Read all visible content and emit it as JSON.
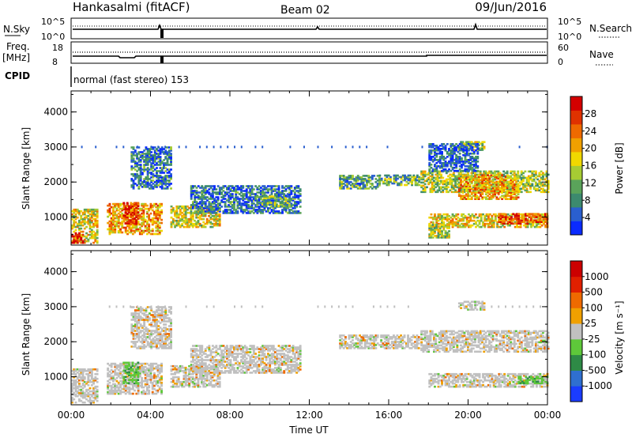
{
  "header": {
    "title": "Hankasalmi (fitACF)",
    "beam": "Beam 02",
    "date": "09/Jun/2016"
  },
  "top_panels": {
    "nsky_label": "N.Sky",
    "nsearch_label": "N.Search",
    "n_ticks": [
      "10^5",
      "10^0"
    ],
    "n_ticks_right": [
      "10^5",
      "10^0"
    ],
    "freq_label": "Freq.",
    "freq_unit": "[MHz]",
    "freq_ticks": [
      "18",
      "8"
    ],
    "nave_label": "Nave",
    "nave_ticks": [
      "60",
      "0"
    ],
    "cpid_label": "CPID",
    "cpid_text": "normal (fast stereo) 153"
  },
  "chart_data": [
    {
      "type": "heatmap",
      "title": "",
      "quantity": "Power",
      "ylabel": "Slant Range [km]",
      "xlabel": "",
      "ylim": [
        200,
        4600
      ],
      "yticks": [
        1000,
        2000,
        3000,
        4000
      ],
      "colorbar_label": "Power [dB]",
      "colorbar_ticks": [
        "4",
        "8",
        "12",
        "16",
        "20",
        "24",
        "28"
      ],
      "colorbar_colors": [
        "#0a2bff",
        "#2a5fcf",
        "#3c8a6e",
        "#5aa35a",
        "#a6cc33",
        "#f0d800",
        "#f0a000",
        "#ef6a00",
        "#e03200",
        "#d40000"
      ],
      "echo_regions": [
        {
          "t0": 0.0,
          "t1": 1.3,
          "r0": 250,
          "r1": 1200,
          "level": 0.55
        },
        {
          "t0": 0.0,
          "t1": 0.6,
          "r0": 250,
          "r1": 550,
          "level": 0.95
        },
        {
          "t0": 1.8,
          "t1": 4.5,
          "r0": 500,
          "r1": 1400,
          "level": 0.65
        },
        {
          "t0": 2.6,
          "t1": 3.4,
          "r0": 800,
          "r1": 1400,
          "level": 0.9
        },
        {
          "t0": 5.0,
          "t1": 7.5,
          "r0": 700,
          "r1": 1300,
          "level": 0.5
        },
        {
          "t0": 3.0,
          "t1": 5.0,
          "r0": 1800,
          "r1": 3000,
          "level": 0.2
        },
        {
          "t0": 6.0,
          "t1": 11.5,
          "r0": 1100,
          "r1": 1900,
          "level": 0.2
        },
        {
          "t0": 9.5,
          "t1": 11.0,
          "r0": 1300,
          "r1": 1600,
          "level": 0.35
        },
        {
          "t0": 13.5,
          "t1": 15.5,
          "r0": 1800,
          "r1": 2200,
          "level": 0.3
        },
        {
          "t0": 15.5,
          "t1": 17.5,
          "r0": 1900,
          "r1": 2200,
          "level": 0.35
        },
        {
          "t0": 17.6,
          "t1": 24.0,
          "r0": 1700,
          "r1": 2300,
          "level": 0.45
        },
        {
          "t0": 19.5,
          "t1": 22.5,
          "r0": 1500,
          "r1": 2200,
          "level": 0.65
        },
        {
          "t0": 18.0,
          "t1": 24.0,
          "r0": 700,
          "r1": 1100,
          "level": 0.55
        },
        {
          "t0": 21.5,
          "t1": 24.0,
          "r0": 800,
          "r1": 1100,
          "level": 0.8
        },
        {
          "t0": 18.0,
          "t1": 19.0,
          "r0": 400,
          "r1": 800,
          "level": 0.45
        },
        {
          "t0": 19.5,
          "t1": 20.8,
          "r0": 2900,
          "r1": 3150,
          "level": 0.45
        },
        {
          "t0": 18.0,
          "t1": 20.5,
          "r0": 2300,
          "r1": 3100,
          "level": 0.15
        }
      ]
    },
    {
      "type": "heatmap",
      "title": "",
      "quantity": "Velocity",
      "ylabel": "Slant Range [km]",
      "xlabel": "Time UT",
      "ylim": [
        200,
        4600
      ],
      "yticks": [
        1000,
        2000,
        3000,
        4000
      ],
      "xticks": [
        "00:00",
        "04:00",
        "08:00",
        "12:00",
        "16:00",
        "20:00",
        "00:00"
      ],
      "xlim_hours": [
        0,
        24
      ],
      "colorbar_label": "Velocity [m s⁻¹]",
      "colorbar_ticks": [
        "1000",
        "500",
        "100",
        "25",
        "-25",
        "-100",
        "-500",
        "-1000"
      ],
      "colorbar_colors": [
        "#1a3cff",
        "#2f6fd0",
        "#2e8a46",
        "#5ec83a",
        "#c0c0c0",
        "#f0a000",
        "#ef6a00",
        "#e02000",
        "#cc0000"
      ],
      "echo_regions": [
        {
          "t0": 0.0,
          "t1": 1.3,
          "r0": 250,
          "r1": 1200,
          "level": 0.5
        },
        {
          "t0": 1.8,
          "t1": 4.5,
          "r0": 500,
          "r1": 1400,
          "level": 0.5
        },
        {
          "t0": 2.6,
          "t1": 3.4,
          "r0": 800,
          "r1": 1400,
          "level": 0.85
        },
        {
          "t0": 5.0,
          "t1": 7.5,
          "r0": 700,
          "r1": 1300,
          "level": 0.5
        },
        {
          "t0": 3.0,
          "t1": 5.0,
          "r0": 1800,
          "r1": 3000,
          "level": 0.5
        },
        {
          "t0": 6.0,
          "t1": 11.5,
          "r0": 1100,
          "r1": 1900,
          "level": 0.5
        },
        {
          "t0": 13.5,
          "t1": 17.5,
          "r0": 1800,
          "r1": 2200,
          "level": 0.5
        },
        {
          "t0": 17.6,
          "t1": 24.0,
          "r0": 1700,
          "r1": 2300,
          "level": 0.5
        },
        {
          "t0": 18.0,
          "t1": 24.0,
          "r0": 700,
          "r1": 1100,
          "level": 0.5
        },
        {
          "t0": 22.5,
          "t1": 24.0,
          "r0": 800,
          "r1": 1000,
          "level": 0.85
        },
        {
          "t0": 19.5,
          "t1": 20.8,
          "r0": 2900,
          "r1": 3150,
          "level": 0.5
        }
      ]
    }
  ]
}
